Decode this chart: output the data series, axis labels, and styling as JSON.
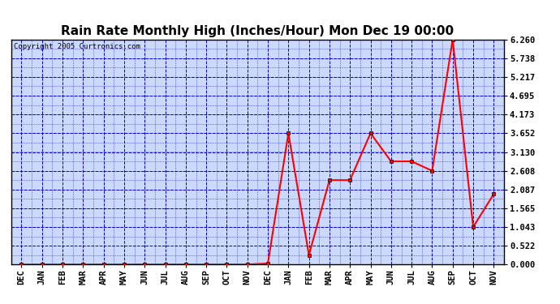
{
  "title": "Rain Rate Monthly High (Inches/Hour) Mon Dec 19 00:00",
  "copyright": "Copyright 2005 Curtronics.com",
  "x_labels": [
    "DEC",
    "JAN",
    "FEB",
    "MAR",
    "APR",
    "MAY",
    "JUN",
    "JUL",
    "AUG",
    "SEP",
    "OCT",
    "NOV",
    "DEC",
    "JAN",
    "FEB",
    "MAR",
    "APR",
    "MAY",
    "JUN",
    "JUL",
    "AUG",
    "SEP",
    "OCT",
    "NOV"
  ],
  "y_values": [
    0.0,
    0.0,
    0.0,
    0.0,
    0.0,
    0.0,
    0.0,
    0.0,
    0.0,
    0.0,
    0.0,
    0.0,
    0.03,
    3.652,
    0.261,
    2.348,
    2.348,
    3.652,
    2.869,
    2.869,
    2.608,
    6.26,
    1.043,
    1.96
  ],
  "yticks": [
    0.0,
    0.522,
    1.043,
    1.565,
    2.087,
    2.608,
    3.13,
    3.652,
    4.173,
    4.695,
    5.217,
    5.738,
    6.26
  ],
  "ylim": [
    0.0,
    6.26
  ],
  "line_color": "red",
  "marker": "s",
  "marker_size": 2.5,
  "plot_bg": "#ccd9ff",
  "grid_color": "#0000cc",
  "title_fontsize": 11,
  "tick_fontsize": 7.5,
  "copyright_fontsize": 6.5
}
